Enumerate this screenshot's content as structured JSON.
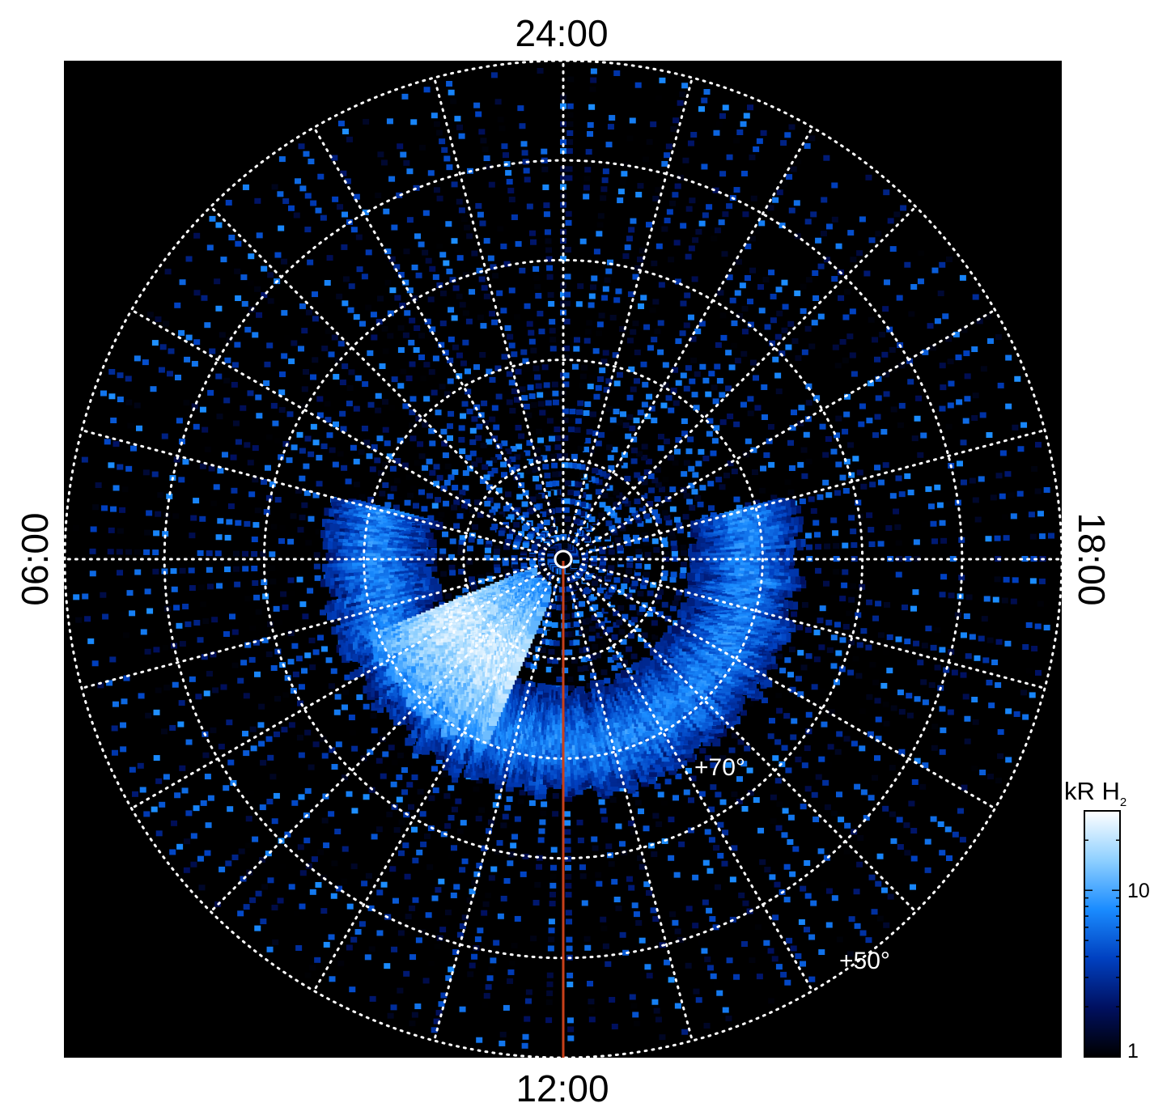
{
  "chart_data": {
    "type": "heatmap",
    "projection": "polar",
    "local_time_labels": {
      "top": "24:00",
      "bottom": "12:00",
      "left": "06:00",
      "right": "18:00"
    },
    "latitude_labels": [
      {
        "text": "+70°",
        "lat": 70
      },
      {
        "text": "+50°",
        "lat": 50
      }
    ],
    "latitude_circles": [
      90,
      80,
      70,
      60,
      50,
      40
    ],
    "meridian_count": 24,
    "colorbar": {
      "label": "kR H",
      "label_subscript": "2",
      "scale": "log",
      "range": [
        1,
        30
      ],
      "ticks": [
        {
          "value": 10,
          "text": "10"
        },
        {
          "value": 1,
          "text": "1"
        }
      ]
    },
    "colormap": [
      "#000000",
      "#001060",
      "#0040c0",
      "#1a8cff",
      "#8fd0ff",
      "#ffffff"
    ],
    "reference_line": {
      "color": "#c8401a",
      "local_time": "12:00"
    },
    "features": [
      {
        "name": "main auroral oval",
        "local_time_range": [
          "05:00",
          "19:00"
        ],
        "lat_range": [
          67,
          76
        ],
        "brightness_kR": 10
      },
      {
        "name": "dawn bright patch",
        "local_time_range": [
          "07:30",
          "10:30"
        ],
        "lat_range": [
          70,
          86
        ],
        "brightness_kR": 30
      }
    ],
    "background_noise_kR": [
      1,
      8
    ]
  }
}
